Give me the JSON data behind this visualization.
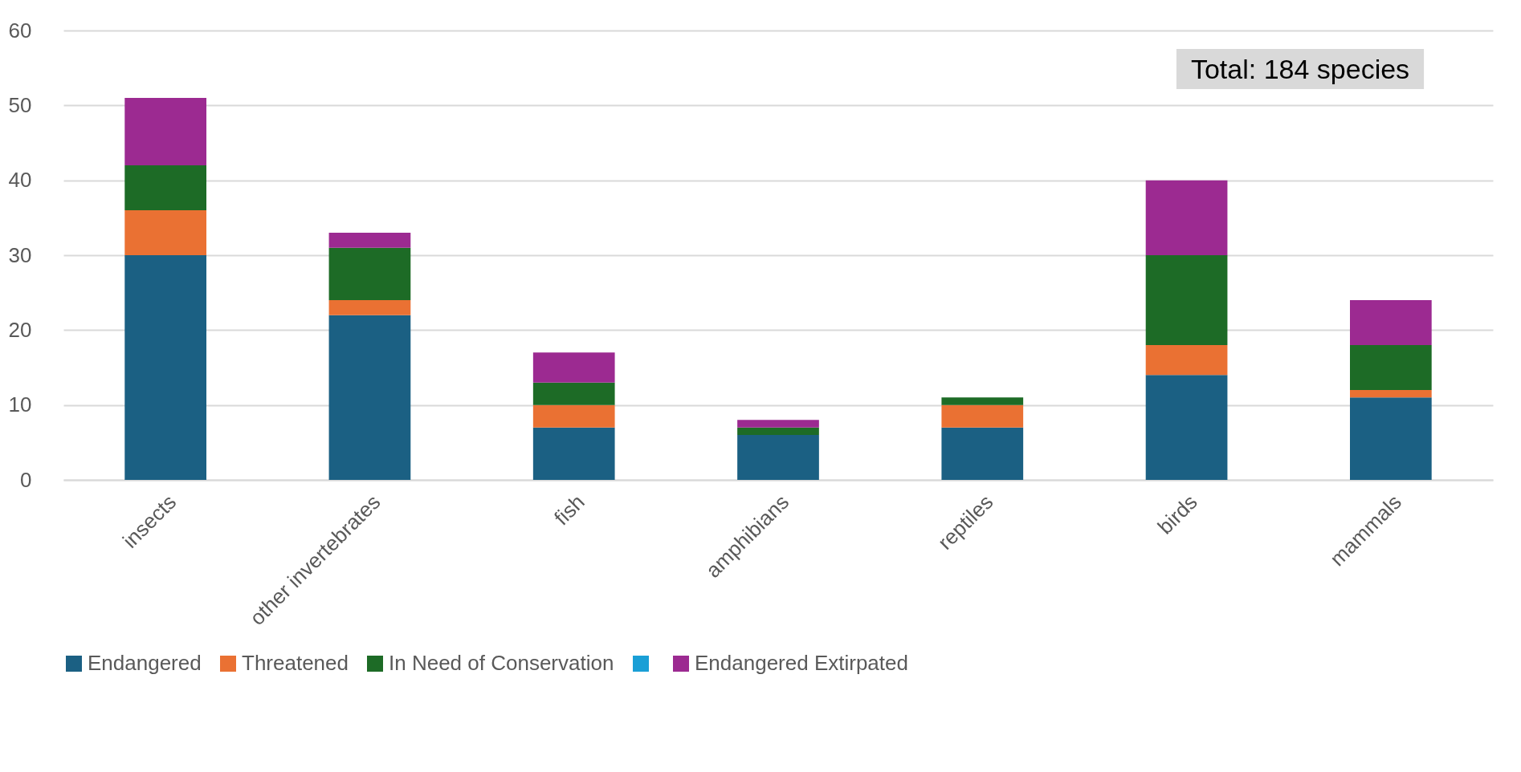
{
  "chart_data": {
    "type": "bar",
    "stacked": true,
    "categories": [
      "insects",
      "other invertebrates",
      "fish",
      "amphibians",
      "reptiles",
      "birds",
      "mammals"
    ],
    "series": [
      {
        "name": "Endangered",
        "color": "#1b6083",
        "values": [
          30,
          22,
          7,
          6,
          7,
          14,
          11
        ]
      },
      {
        "name": "Threatened",
        "color": "#ea7133",
        "values": [
          6,
          2,
          3,
          0,
          3,
          4,
          1
        ]
      },
      {
        "name": "In Need of Conservation",
        "color": "#1d6b26",
        "values": [
          6,
          7,
          3,
          1,
          1,
          12,
          6
        ]
      },
      {
        "color": "#1a9fd6",
        "values": [
          0,
          0,
          0,
          0,
          0,
          0,
          0
        ]
      },
      {
        "name": "Endangered Extirpated",
        "color": "#9c2a91",
        "values": [
          9,
          2,
          4,
          1,
          0,
          10,
          6
        ]
      }
    ],
    "ylim": [
      0,
      60
    ],
    "yticks": [
      0,
      10,
      20,
      30,
      40,
      50,
      60
    ],
    "grid": "y",
    "legend": "bottom",
    "annotations": [
      "Total: 184 species"
    ]
  }
}
